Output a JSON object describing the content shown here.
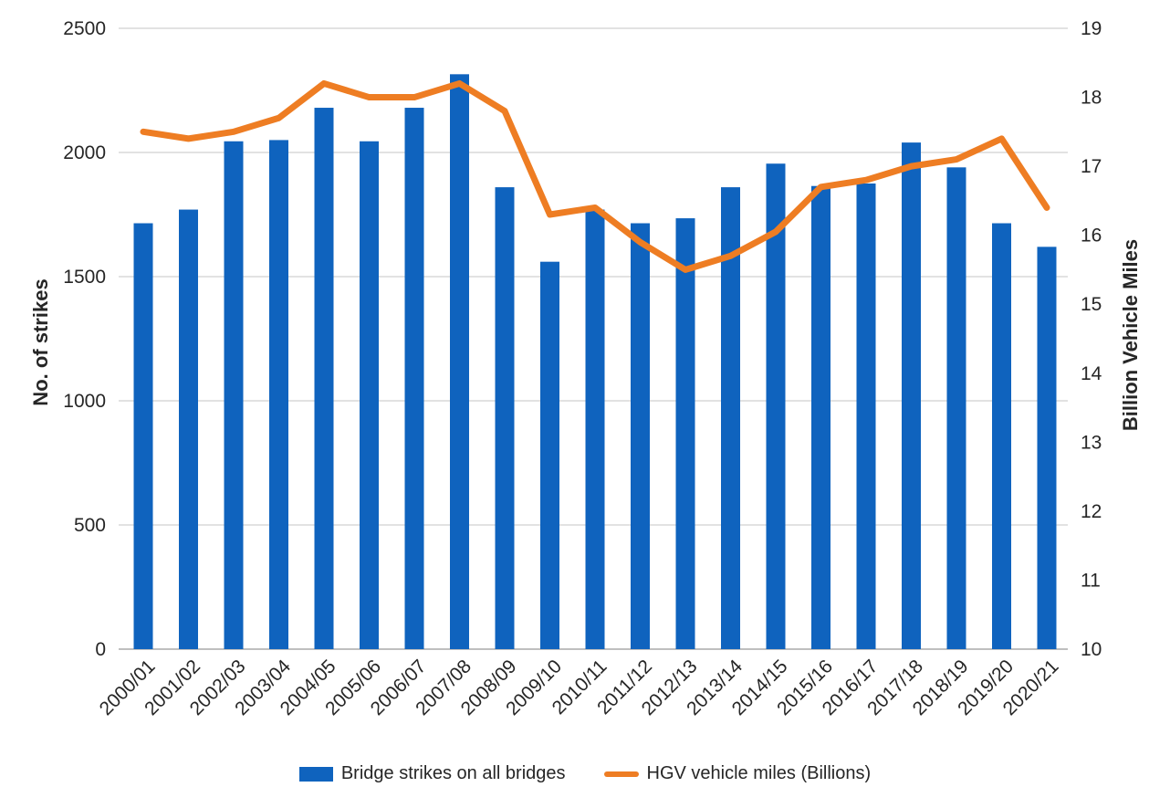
{
  "chart_data": {
    "type": "combo-bar-line",
    "categories": [
      "2000/01",
      "2001/02",
      "2002/03",
      "2003/04",
      "2004/05",
      "2005/06",
      "2006/07",
      "2007/08",
      "2008/09",
      "2009/10",
      "2010/11",
      "2011/12",
      "2012/13",
      "2013/14",
      "2014/15",
      "2015/16",
      "2016/17",
      "2017/18",
      "2018/19",
      "2019/20",
      "2020/21"
    ],
    "series": [
      {
        "name": "Bridge strikes on all bridges",
        "type": "bar",
        "axis": "left",
        "color": "#0F63BE",
        "values": [
          1715,
          1770,
          2045,
          2050,
          2180,
          2045,
          2180,
          2315,
          1860,
          1560,
          1770,
          1715,
          1735,
          1860,
          1955,
          1865,
          1875,
          2040,
          1940,
          1715,
          1620
        ]
      },
      {
        "name": "HGV vehicle miles (Billions)",
        "type": "line",
        "axis": "right",
        "color": "#EE7D23",
        "values": [
          17.5,
          17.4,
          17.5,
          17.7,
          18.2,
          18.0,
          18.0,
          18.2,
          17.8,
          16.3,
          16.4,
          15.9,
          15.5,
          15.7,
          16.05,
          16.7,
          16.8,
          17.0,
          17.1,
          17.4,
          16.4
        ]
      }
    ],
    "left_axis": {
      "label": "No. of strikes",
      "min": 0,
      "max": 2500,
      "ticks": [
        "0",
        "500",
        "1000",
        "1500",
        "2000",
        "2500"
      ]
    },
    "right_axis": {
      "label": "Billion Vehicle Miles",
      "min": 10,
      "max": 19,
      "ticks": [
        "10",
        "11",
        "12",
        "13",
        "14",
        "15",
        "16",
        "17",
        "18",
        "19"
      ]
    },
    "grid": true,
    "legend_position": "bottom",
    "styles": {
      "gridline_color": "#D9D9D9",
      "axisline_color": "#BFBFBF",
      "tick_text_color": "#262626",
      "background": "#FFFFFF"
    }
  }
}
